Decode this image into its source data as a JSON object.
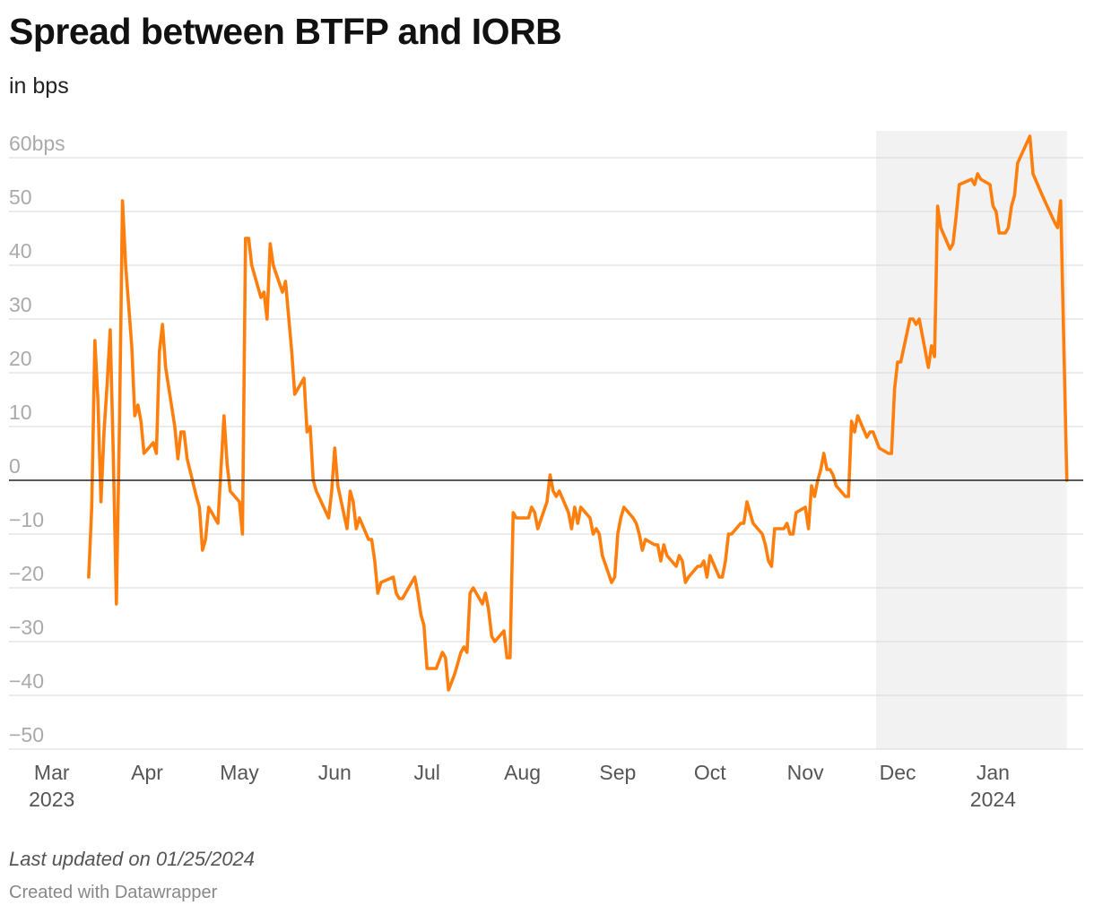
{
  "chart_data": {
    "type": "line",
    "title": "Spread between BTFP and IORB",
    "subtitle": "in bps",
    "ylabel": "in bps",
    "ylim": [
      -50,
      65
    ],
    "yticks": [
      {
        "value": 60,
        "label": "60bps"
      },
      {
        "value": 50,
        "label": "50"
      },
      {
        "value": 40,
        "label": "40"
      },
      {
        "value": 30,
        "label": "30"
      },
      {
        "value": 20,
        "label": "20"
      },
      {
        "value": 10,
        "label": "10"
      },
      {
        "value": 0,
        "label": "0"
      },
      {
        "value": -10,
        "label": "−10"
      },
      {
        "value": -20,
        "label": "−20"
      },
      {
        "value": -30,
        "label": "−30"
      },
      {
        "value": -40,
        "label": "−40"
      },
      {
        "value": -50,
        "label": "−50"
      }
    ],
    "xrange": [
      "2023-02-18",
      "2024-01-28"
    ],
    "xticks": [
      {
        "date": "2023-03-01",
        "label": "Mar",
        "year": "2023"
      },
      {
        "date": "2023-04-01",
        "label": "Apr",
        "year": ""
      },
      {
        "date": "2023-05-01",
        "label": "May",
        "year": ""
      },
      {
        "date": "2023-06-01",
        "label": "Jun",
        "year": ""
      },
      {
        "date": "2023-07-01",
        "label": "Jul",
        "year": ""
      },
      {
        "date": "2023-08-01",
        "label": "Aug",
        "year": ""
      },
      {
        "date": "2023-09-01",
        "label": "Sep",
        "year": ""
      },
      {
        "date": "2023-10-01",
        "label": "Oct",
        "year": ""
      },
      {
        "date": "2023-11-01",
        "label": "Nov",
        "year": ""
      },
      {
        "date": "2023-12-01",
        "label": "Dec",
        "year": ""
      },
      {
        "date": "2024-01-01",
        "label": "Jan",
        "year": "2024"
      }
    ],
    "shaded_range": [
      "2023-11-24",
      "2024-01-25"
    ],
    "series": [
      {
        "name": "Spread between BTFP and IORB",
        "color": "#ff7f0e",
        "points": [
          [
            "2023-03-13",
            -18
          ],
          [
            "2023-03-14",
            -5
          ],
          [
            "2023-03-15",
            26
          ],
          [
            "2023-03-16",
            15
          ],
          [
            "2023-03-17",
            -4
          ],
          [
            "2023-03-18",
            9
          ],
          [
            "2023-03-19",
            18
          ],
          [
            "2023-03-20",
            28
          ],
          [
            "2023-03-21",
            5
          ],
          [
            "2023-03-22",
            -23
          ],
          [
            "2023-03-23",
            10
          ],
          [
            "2023-03-24",
            52
          ],
          [
            "2023-03-25",
            40
          ],
          [
            "2023-03-27",
            25
          ],
          [
            "2023-03-28",
            12
          ],
          [
            "2023-03-29",
            14
          ],
          [
            "2023-03-30",
            11
          ],
          [
            "2023-03-31",
            5
          ],
          [
            "2023-04-03",
            7
          ],
          [
            "2023-04-04",
            5
          ],
          [
            "2023-04-05",
            24
          ],
          [
            "2023-04-06",
            29
          ],
          [
            "2023-04-07",
            21
          ],
          [
            "2023-04-10",
            10
          ],
          [
            "2023-04-11",
            4
          ],
          [
            "2023-04-12",
            9
          ],
          [
            "2023-04-13",
            9
          ],
          [
            "2023-04-14",
            4
          ],
          [
            "2023-04-17",
            -3
          ],
          [
            "2023-04-18",
            -5
          ],
          [
            "2023-04-19",
            -13
          ],
          [
            "2023-04-20",
            -11
          ],
          [
            "2023-04-21",
            -5
          ],
          [
            "2023-04-24",
            -8
          ],
          [
            "2023-04-26",
            12
          ],
          [
            "2023-04-27",
            3
          ],
          [
            "2023-04-28",
            -2
          ],
          [
            "2023-05-01",
            -4
          ],
          [
            "2023-05-02",
            -10
          ],
          [
            "2023-05-03",
            45
          ],
          [
            "2023-05-04",
            45
          ],
          [
            "2023-05-05",
            40
          ],
          [
            "2023-05-08",
            34
          ],
          [
            "2023-05-09",
            35
          ],
          [
            "2023-05-10",
            30
          ],
          [
            "2023-05-11",
            44
          ],
          [
            "2023-05-12",
            40
          ],
          [
            "2023-05-15",
            35
          ],
          [
            "2023-05-16",
            37
          ],
          [
            "2023-05-18",
            24
          ],
          [
            "2023-05-19",
            16
          ],
          [
            "2023-05-22",
            19
          ],
          [
            "2023-05-23",
            9
          ],
          [
            "2023-05-24",
            10
          ],
          [
            "2023-05-25",
            0
          ],
          [
            "2023-05-26",
            -2
          ],
          [
            "2023-05-30",
            -7
          ],
          [
            "2023-05-31",
            -2
          ],
          [
            "2023-06-01",
            6
          ],
          [
            "2023-06-02",
            -1
          ],
          [
            "2023-06-05",
            -9
          ],
          [
            "2023-06-06",
            -2
          ],
          [
            "2023-06-07",
            -4
          ],
          [
            "2023-06-08",
            -9
          ],
          [
            "2023-06-09",
            -7
          ],
          [
            "2023-06-12",
            -11
          ],
          [
            "2023-06-13",
            -11
          ],
          [
            "2023-06-14",
            -15
          ],
          [
            "2023-06-15",
            -21
          ],
          [
            "2023-06-16",
            -19
          ],
          [
            "2023-06-20",
            -18
          ],
          [
            "2023-06-21",
            -21
          ],
          [
            "2023-06-22",
            -22
          ],
          [
            "2023-06-23",
            -22
          ],
          [
            "2023-06-27",
            -18
          ],
          [
            "2023-06-28",
            -21
          ],
          [
            "2023-06-29",
            -25
          ],
          [
            "2023-06-30",
            -27
          ],
          [
            "2023-07-01",
            -35
          ],
          [
            "2023-07-04",
            -35
          ],
          [
            "2023-07-06",
            -32
          ],
          [
            "2023-07-07",
            -33
          ],
          [
            "2023-07-08",
            -39
          ],
          [
            "2023-07-10",
            -36
          ],
          [
            "2023-07-12",
            -32
          ],
          [
            "2023-07-13",
            -31
          ],
          [
            "2023-07-14",
            -32
          ],
          [
            "2023-07-15",
            -21
          ],
          [
            "2023-07-16",
            -20
          ],
          [
            "2023-07-19",
            -23
          ],
          [
            "2023-07-20",
            -21
          ],
          [
            "2023-07-21",
            -24
          ],
          [
            "2023-07-22",
            -29
          ],
          [
            "2023-07-23",
            -30
          ],
          [
            "2023-07-26",
            -28
          ],
          [
            "2023-07-27",
            -33
          ],
          [
            "2023-07-28",
            -33
          ],
          [
            "2023-07-29",
            -6
          ],
          [
            "2023-07-30",
            -7
          ],
          [
            "2023-08-03",
            -7
          ],
          [
            "2023-08-04",
            -5
          ],
          [
            "2023-08-05",
            -6
          ],
          [
            "2023-08-06",
            -9
          ],
          [
            "2023-08-09",
            -4
          ],
          [
            "2023-08-10",
            1
          ],
          [
            "2023-08-11",
            -2
          ],
          [
            "2023-08-12",
            -3
          ],
          [
            "2023-08-13",
            -2
          ],
          [
            "2023-08-16",
            -6
          ],
          [
            "2023-08-17",
            -9
          ],
          [
            "2023-08-18",
            -5
          ],
          [
            "2023-08-19",
            -8
          ],
          [
            "2023-08-20",
            -5
          ],
          [
            "2023-08-23",
            -7
          ],
          [
            "2023-08-24",
            -10
          ],
          [
            "2023-08-25",
            -9
          ],
          [
            "2023-08-26",
            -10
          ],
          [
            "2023-08-27",
            -14
          ],
          [
            "2023-08-30",
            -19
          ],
          [
            "2023-08-31",
            -18
          ],
          [
            "2023-09-01",
            -10
          ],
          [
            "2023-09-02",
            -7
          ],
          [
            "2023-09-03",
            -5
          ],
          [
            "2023-09-06",
            -7
          ],
          [
            "2023-09-07",
            -8
          ],
          [
            "2023-09-08",
            -10
          ],
          [
            "2023-09-09",
            -13
          ],
          [
            "2023-09-10",
            -11
          ],
          [
            "2023-09-13",
            -12
          ],
          [
            "2023-09-14",
            -12
          ],
          [
            "2023-09-15",
            -15
          ],
          [
            "2023-09-16",
            -12
          ],
          [
            "2023-09-17",
            -14
          ],
          [
            "2023-09-20",
            -16
          ],
          [
            "2023-09-21",
            -14
          ],
          [
            "2023-09-22",
            -15
          ],
          [
            "2023-09-23",
            -19
          ],
          [
            "2023-09-24",
            -18
          ],
          [
            "2023-09-27",
            -16
          ],
          [
            "2023-09-28",
            -16
          ],
          [
            "2023-09-29",
            -15
          ],
          [
            "2023-09-30",
            -18
          ],
          [
            "2023-10-01",
            -14
          ],
          [
            "2023-10-04",
            -18
          ],
          [
            "2023-10-05",
            -18
          ],
          [
            "2023-10-06",
            -15
          ],
          [
            "2023-10-07",
            -10
          ],
          [
            "2023-10-08",
            -10
          ],
          [
            "2023-10-11",
            -8
          ],
          [
            "2023-10-12",
            -8
          ],
          [
            "2023-10-13",
            -4
          ],
          [
            "2023-10-14",
            -6
          ],
          [
            "2023-10-15",
            -8
          ],
          [
            "2023-10-18",
            -10
          ],
          [
            "2023-10-19",
            -12
          ],
          [
            "2023-10-20",
            -15
          ],
          [
            "2023-10-21",
            -16
          ],
          [
            "2023-10-22",
            -9
          ],
          [
            "2023-10-25",
            -9
          ],
          [
            "2023-10-26",
            -8
          ],
          [
            "2023-10-27",
            -10
          ],
          [
            "2023-10-28",
            -10
          ],
          [
            "2023-10-29",
            -6
          ],
          [
            "2023-11-01",
            -5
          ],
          [
            "2023-11-02",
            -9
          ],
          [
            "2023-11-03",
            -1
          ],
          [
            "2023-11-04",
            -3
          ],
          [
            "2023-11-05",
            0
          ],
          [
            "2023-11-06",
            2
          ],
          [
            "2023-11-07",
            5
          ],
          [
            "2023-11-08",
            2
          ],
          [
            "2023-11-09",
            2
          ],
          [
            "2023-11-10",
            1
          ],
          [
            "2023-11-11",
            -1
          ],
          [
            "2023-11-14",
            -3
          ],
          [
            "2023-11-15",
            -3
          ],
          [
            "2023-11-16",
            11
          ],
          [
            "2023-11-17",
            9
          ],
          [
            "2023-11-18",
            12
          ],
          [
            "2023-11-21",
            8
          ],
          [
            "2023-11-22",
            9
          ],
          [
            "2023-11-23",
            9
          ],
          [
            "2023-11-25",
            6
          ],
          [
            "2023-11-28",
            5
          ],
          [
            "2023-11-29",
            5
          ],
          [
            "2023-11-30",
            17
          ],
          [
            "2023-12-01",
            22
          ],
          [
            "2023-12-02",
            22
          ],
          [
            "2023-12-05",
            30
          ],
          [
            "2023-12-06",
            30
          ],
          [
            "2023-12-07",
            29
          ],
          [
            "2023-12-08",
            30
          ],
          [
            "2023-12-09",
            27
          ],
          [
            "2023-12-11",
            21
          ],
          [
            "2023-12-12",
            25
          ],
          [
            "2023-12-13",
            23
          ],
          [
            "2023-12-14",
            51
          ],
          [
            "2023-12-15",
            47
          ],
          [
            "2023-12-18",
            43
          ],
          [
            "2023-12-19",
            44
          ],
          [
            "2023-12-20",
            49
          ],
          [
            "2023-12-21",
            55
          ],
          [
            "2023-12-25",
            56
          ],
          [
            "2023-12-26",
            55
          ],
          [
            "2023-12-27",
            57
          ],
          [
            "2023-12-28",
            56
          ],
          [
            "2023-12-31",
            55
          ],
          [
            "2024-01-01",
            51
          ],
          [
            "2024-01-02",
            50
          ],
          [
            "2024-01-03",
            46
          ],
          [
            "2024-01-05",
            46
          ],
          [
            "2024-01-06",
            47
          ],
          [
            "2024-01-07",
            51
          ],
          [
            "2024-01-08",
            53
          ],
          [
            "2024-01-09",
            59
          ],
          [
            "2024-01-13",
            64
          ],
          [
            "2024-01-14",
            57
          ],
          [
            "2024-01-17",
            53
          ],
          [
            "2024-01-21",
            48
          ],
          [
            "2024-01-22",
            47
          ],
          [
            "2024-01-23",
            52
          ],
          [
            "2024-01-25",
            0
          ]
        ]
      }
    ]
  },
  "footer": {
    "updated": "Last updated on 01/25/2024",
    "credit": "Created with Datawrapper"
  },
  "colors": {
    "line": "#ff7f0e",
    "shade": "#f2f2f2",
    "grid": "#e0e0e0",
    "zero_line": "#222222"
  }
}
